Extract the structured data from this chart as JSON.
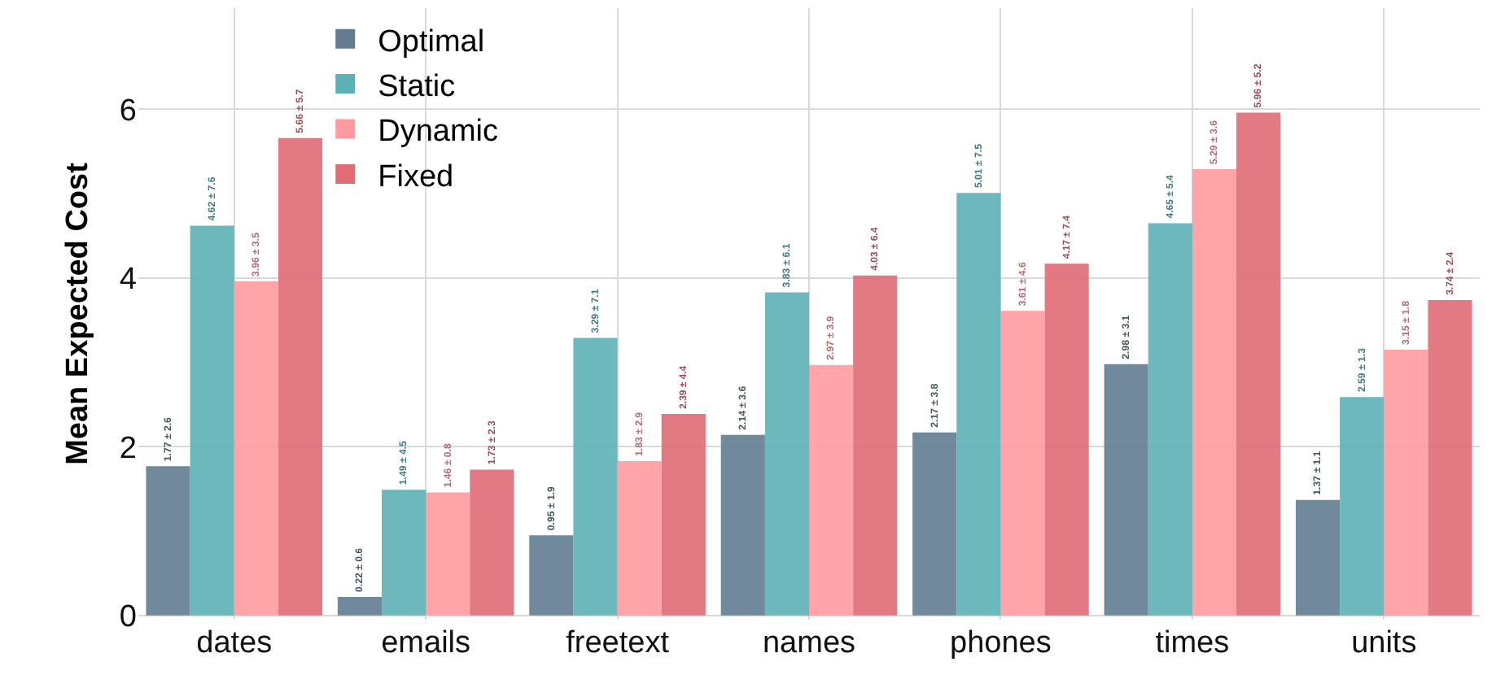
{
  "chart_data": {
    "type": "bar",
    "ylabel": "Mean Expected Cost",
    "categories": [
      "dates",
      "emails",
      "freetext",
      "names",
      "phones",
      "times",
      "units"
    ],
    "series": [
      {
        "name": "Optimal",
        "color": "#617c90",
        "values": [
          1.77,
          0.22,
          0.95,
          2.14,
          2.17,
          2.98,
          1.37
        ],
        "value_labels": [
          "1.77 ± 2.6",
          "0.22 ± 0.6",
          "0.95 ± 1.9",
          "2.14 ± 3.6",
          "2.17 ± 3.8",
          "2.98 ± 3.1",
          "1.37 ± 1.1"
        ]
      },
      {
        "name": "Static",
        "color": "#5cb0b6",
        "values": [
          4.62,
          1.49,
          3.29,
          3.83,
          5.01,
          4.65,
          2.59
        ],
        "value_labels": [
          "4.62 ± 7.6",
          "1.49 ± 4.5",
          "3.29 ± 7.1",
          "3.83 ± 6.1",
          "5.01 ± 7.5",
          "4.65 ± 5.4",
          "2.59 ± 1.3"
        ]
      },
      {
        "name": "Dynamic",
        "color": "#ff9ba0",
        "values": [
          3.96,
          1.46,
          1.83,
          2.97,
          3.61,
          5.29,
          3.15
        ],
        "value_labels": [
          "3.96 ± 3.5",
          "1.46 ± 0.8",
          "1.83 ± 2.9",
          "2.97 ± 3.9",
          "3.61 ± 4.6",
          "5.29 ± 3.6",
          "3.15 ± 1.8"
        ]
      },
      {
        "name": "Fixed",
        "color": "#e06c76",
        "values": [
          5.66,
          1.73,
          2.39,
          4.03,
          4.17,
          5.96,
          3.74
        ],
        "value_labels": [
          "5.66 ± 5.7",
          "1.73 ± 2.3",
          "2.39 ± 4.4",
          "4.03 ± 6.4",
          "4.17 ± 7.4",
          "5.96 ± 5.2",
          "3.74 ± 2.4"
        ]
      }
    ],
    "ylim": [
      -0.05,
      7.2
    ],
    "yticks": [
      0,
      2,
      4,
      6
    ],
    "grid": true,
    "legend": "top left"
  }
}
